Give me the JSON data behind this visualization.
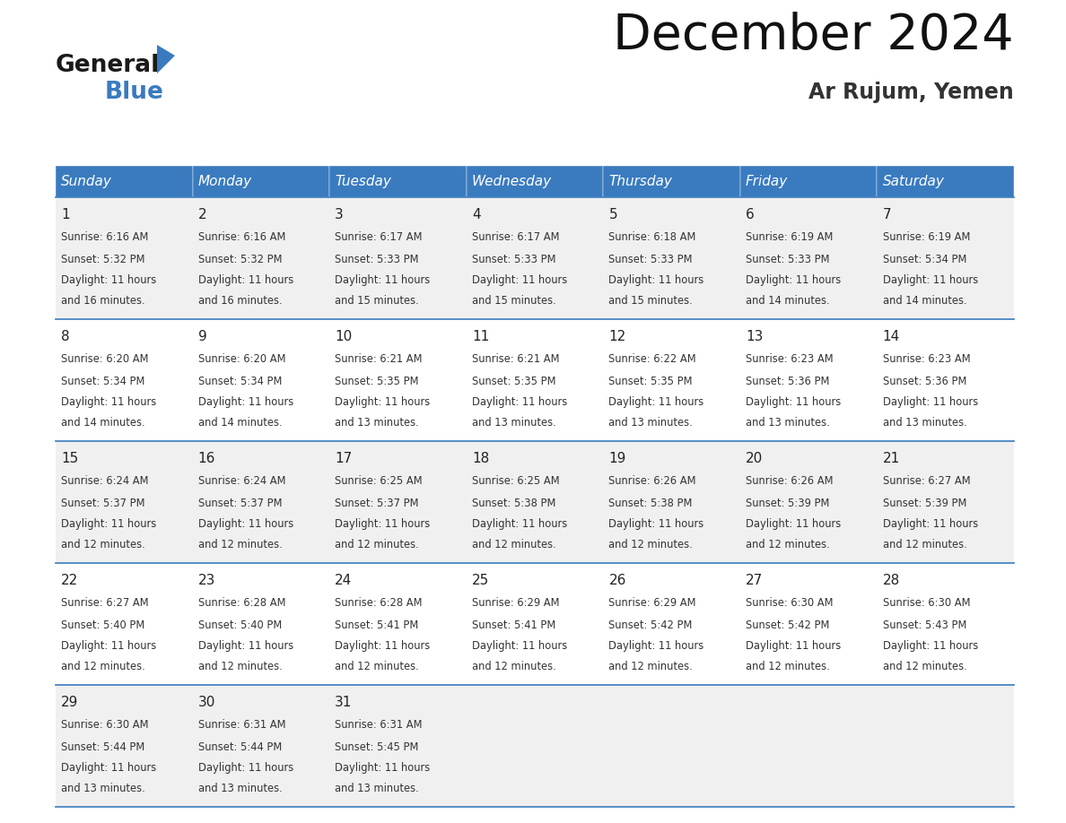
{
  "title": "December 2024",
  "subtitle": "Ar Rujum, Yemen",
  "days_of_week": [
    "Sunday",
    "Monday",
    "Tuesday",
    "Wednesday",
    "Thursday",
    "Friday",
    "Saturday"
  ],
  "header_bg": "#3a7bbf",
  "header_text": "#ffffff",
  "row_bg_odd": "#f0f0f0",
  "row_bg_even": "#ffffff",
  "cell_border_color": "#3a7bbf",
  "day_num_color": "#222222",
  "cell_text_color": "#333333",
  "calendar": [
    [
      {
        "day": 1,
        "sunrise": "6:16 AM",
        "sunset": "5:32 PM",
        "daylight_hours": 11,
        "daylight_minutes": 16
      },
      {
        "day": 2,
        "sunrise": "6:16 AM",
        "sunset": "5:32 PM",
        "daylight_hours": 11,
        "daylight_minutes": 16
      },
      {
        "day": 3,
        "sunrise": "6:17 AM",
        "sunset": "5:33 PM",
        "daylight_hours": 11,
        "daylight_minutes": 15
      },
      {
        "day": 4,
        "sunrise": "6:17 AM",
        "sunset": "5:33 PM",
        "daylight_hours": 11,
        "daylight_minutes": 15
      },
      {
        "day": 5,
        "sunrise": "6:18 AM",
        "sunset": "5:33 PM",
        "daylight_hours": 11,
        "daylight_minutes": 15
      },
      {
        "day": 6,
        "sunrise": "6:19 AM",
        "sunset": "5:33 PM",
        "daylight_hours": 11,
        "daylight_minutes": 14
      },
      {
        "day": 7,
        "sunrise": "6:19 AM",
        "sunset": "5:34 PM",
        "daylight_hours": 11,
        "daylight_minutes": 14
      }
    ],
    [
      {
        "day": 8,
        "sunrise": "6:20 AM",
        "sunset": "5:34 PM",
        "daylight_hours": 11,
        "daylight_minutes": 14
      },
      {
        "day": 9,
        "sunrise": "6:20 AM",
        "sunset": "5:34 PM",
        "daylight_hours": 11,
        "daylight_minutes": 14
      },
      {
        "day": 10,
        "sunrise": "6:21 AM",
        "sunset": "5:35 PM",
        "daylight_hours": 11,
        "daylight_minutes": 13
      },
      {
        "day": 11,
        "sunrise": "6:21 AM",
        "sunset": "5:35 PM",
        "daylight_hours": 11,
        "daylight_minutes": 13
      },
      {
        "day": 12,
        "sunrise": "6:22 AM",
        "sunset": "5:35 PM",
        "daylight_hours": 11,
        "daylight_minutes": 13
      },
      {
        "day": 13,
        "sunrise": "6:23 AM",
        "sunset": "5:36 PM",
        "daylight_hours": 11,
        "daylight_minutes": 13
      },
      {
        "day": 14,
        "sunrise": "6:23 AM",
        "sunset": "5:36 PM",
        "daylight_hours": 11,
        "daylight_minutes": 13
      }
    ],
    [
      {
        "day": 15,
        "sunrise": "6:24 AM",
        "sunset": "5:37 PM",
        "daylight_hours": 11,
        "daylight_minutes": 12
      },
      {
        "day": 16,
        "sunrise": "6:24 AM",
        "sunset": "5:37 PM",
        "daylight_hours": 11,
        "daylight_minutes": 12
      },
      {
        "day": 17,
        "sunrise": "6:25 AM",
        "sunset": "5:37 PM",
        "daylight_hours": 11,
        "daylight_minutes": 12
      },
      {
        "day": 18,
        "sunrise": "6:25 AM",
        "sunset": "5:38 PM",
        "daylight_hours": 11,
        "daylight_minutes": 12
      },
      {
        "day": 19,
        "sunrise": "6:26 AM",
        "sunset": "5:38 PM",
        "daylight_hours": 11,
        "daylight_minutes": 12
      },
      {
        "day": 20,
        "sunrise": "6:26 AM",
        "sunset": "5:39 PM",
        "daylight_hours": 11,
        "daylight_minutes": 12
      },
      {
        "day": 21,
        "sunrise": "6:27 AM",
        "sunset": "5:39 PM",
        "daylight_hours": 11,
        "daylight_minutes": 12
      }
    ],
    [
      {
        "day": 22,
        "sunrise": "6:27 AM",
        "sunset": "5:40 PM",
        "daylight_hours": 11,
        "daylight_minutes": 12
      },
      {
        "day": 23,
        "sunrise": "6:28 AM",
        "sunset": "5:40 PM",
        "daylight_hours": 11,
        "daylight_minutes": 12
      },
      {
        "day": 24,
        "sunrise": "6:28 AM",
        "sunset": "5:41 PM",
        "daylight_hours": 11,
        "daylight_minutes": 12
      },
      {
        "day": 25,
        "sunrise": "6:29 AM",
        "sunset": "5:41 PM",
        "daylight_hours": 11,
        "daylight_minutes": 12
      },
      {
        "day": 26,
        "sunrise": "6:29 AM",
        "sunset": "5:42 PM",
        "daylight_hours": 11,
        "daylight_minutes": 12
      },
      {
        "day": 27,
        "sunrise": "6:30 AM",
        "sunset": "5:42 PM",
        "daylight_hours": 11,
        "daylight_minutes": 12
      },
      {
        "day": 28,
        "sunrise": "6:30 AM",
        "sunset": "5:43 PM",
        "daylight_hours": 11,
        "daylight_minutes": 12
      }
    ],
    [
      {
        "day": 29,
        "sunrise": "6:30 AM",
        "sunset": "5:44 PM",
        "daylight_hours": 11,
        "daylight_minutes": 13
      },
      {
        "day": 30,
        "sunrise": "6:31 AM",
        "sunset": "5:44 PM",
        "daylight_hours": 11,
        "daylight_minutes": 13
      },
      {
        "day": 31,
        "sunrise": "6:31 AM",
        "sunset": "5:45 PM",
        "daylight_hours": 11,
        "daylight_minutes": 13
      },
      null,
      null,
      null,
      null
    ]
  ],
  "num_rows": 5,
  "num_cols": 7,
  "fig_width": 11.88,
  "fig_height": 9.18,
  "dpi": 100
}
